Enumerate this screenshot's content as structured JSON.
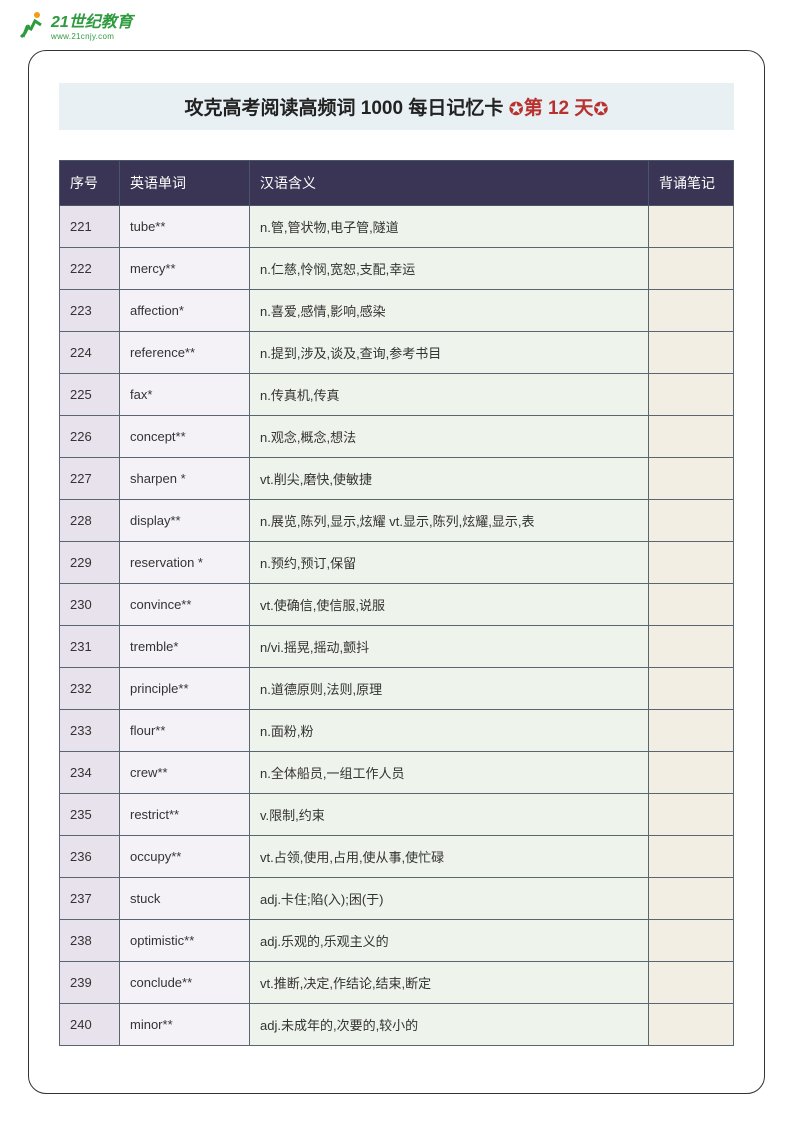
{
  "logo": {
    "main": "21世纪教育",
    "sub": "www.21cnjy.com"
  },
  "title": {
    "main": "攻克高考阅读高频词 1000  每日记忆卡  ",
    "day": "第 12 天"
  },
  "headers": {
    "num": "序号",
    "word": "英语单词",
    "meaning": "汉语含义",
    "notes": "背诵笔记"
  },
  "rows": [
    {
      "num": "221",
      "word": "tube**",
      "meaning": "n.管,管状物,电子管,隧道"
    },
    {
      "num": "222",
      "word": "mercy**",
      "meaning": "n.仁慈,怜悯,宽恕,支配,幸运"
    },
    {
      "num": "223",
      "word": "affection*",
      "meaning": "n.喜爱,感情,影响,感染"
    },
    {
      "num": "224",
      "word": "reference**",
      "meaning": "n.提到,涉及,谈及,查询,参考书目"
    },
    {
      "num": "225",
      "word": "fax*",
      "meaning": "n.传真机,传真"
    },
    {
      "num": "226",
      "word": "concept**",
      "meaning": "n.观念,概念,想法"
    },
    {
      "num": "227",
      "word": "sharpen *",
      "meaning": "vt.削尖,磨快,使敏捷"
    },
    {
      "num": "228",
      "word": "display**",
      "meaning": "n.展览,陈列,显示,炫耀  vt.显示,陈列,炫耀,显示,表"
    },
    {
      "num": "229",
      "word": "reservation *",
      "meaning": "n.预约,预订,保留"
    },
    {
      "num": "230",
      "word": "convince**",
      "meaning": "vt.使确信,使信服,说服"
    },
    {
      "num": "231",
      "word": "tremble*",
      "meaning": "n/vi.摇晃,摇动,颤抖"
    },
    {
      "num": "232",
      "word": "principle**",
      "meaning": "n.道德原则,法则,原理"
    },
    {
      "num": "233",
      "word": "flour**",
      "meaning": "n.面粉,粉"
    },
    {
      "num": "234",
      "word": "crew**",
      "meaning": "n.全体船员,一组工作人员"
    },
    {
      "num": "235",
      "word": "restrict**",
      "meaning": "v.限制,约束"
    },
    {
      "num": "236",
      "word": "occupy**",
      "meaning": "vt.占领,使用,占用,使从事,使忙碌"
    },
    {
      "num": "237",
      "word": "stuck",
      "meaning": "adj.卡住;陷(入);困(于)"
    },
    {
      "num": "238",
      "word": "optimistic**",
      "meaning": "adj.乐观的,乐观主义的"
    },
    {
      "num": "239",
      "word": "conclude**",
      "meaning": "vt.推断,决定,作结论,结束,断定"
    },
    {
      "num": "240",
      "word": "minor**",
      "meaning": "adj.未成年的,次要的,较小的"
    }
  ]
}
